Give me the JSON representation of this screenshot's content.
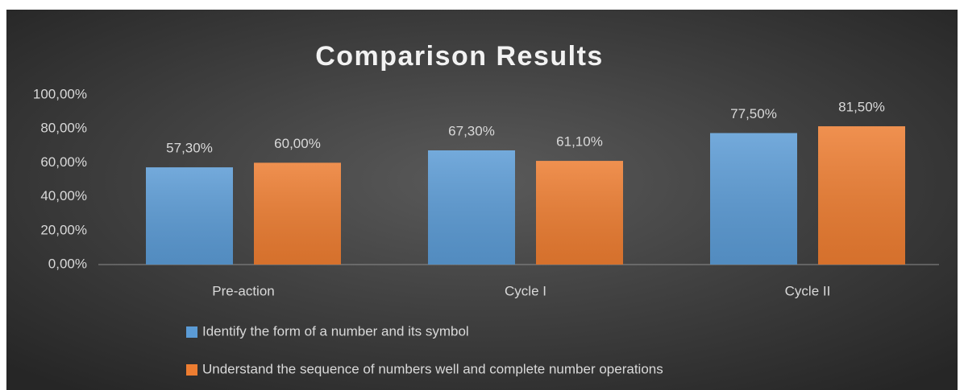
{
  "chart_data": {
    "type": "bar",
    "title": "Comparison  Results",
    "categories": [
      "Pre-action",
      "Cycle I",
      "Cycle II"
    ],
    "series": [
      {
        "name": "Identify the form of a number and its symbol",
        "color": "#5b9bd5",
        "values": [
          57.3,
          67.3,
          77.5
        ],
        "value_labels": [
          "57,30%",
          "67,30%",
          "77,50%"
        ]
      },
      {
        "name": "Understand the sequence of numbers well and complete number operations",
        "color": "#ed7d31",
        "values": [
          60.0,
          61.1,
          81.5
        ],
        "value_labels": [
          "60,00%",
          "61,10%",
          "81,50%"
        ]
      }
    ],
    "ylim": [
      0,
      100
    ],
    "yticks": [
      {
        "value": 0,
        "label": "0,00%"
      },
      {
        "value": 20,
        "label": "20,00%"
      },
      {
        "value": 40,
        "label": "40,00%"
      },
      {
        "value": 60,
        "label": "60,00%"
      },
      {
        "value": 80,
        "label": "80,00%"
      },
      {
        "value": 100,
        "label": "100,00%"
      }
    ],
    "grid": false,
    "legend": "bottom"
  }
}
